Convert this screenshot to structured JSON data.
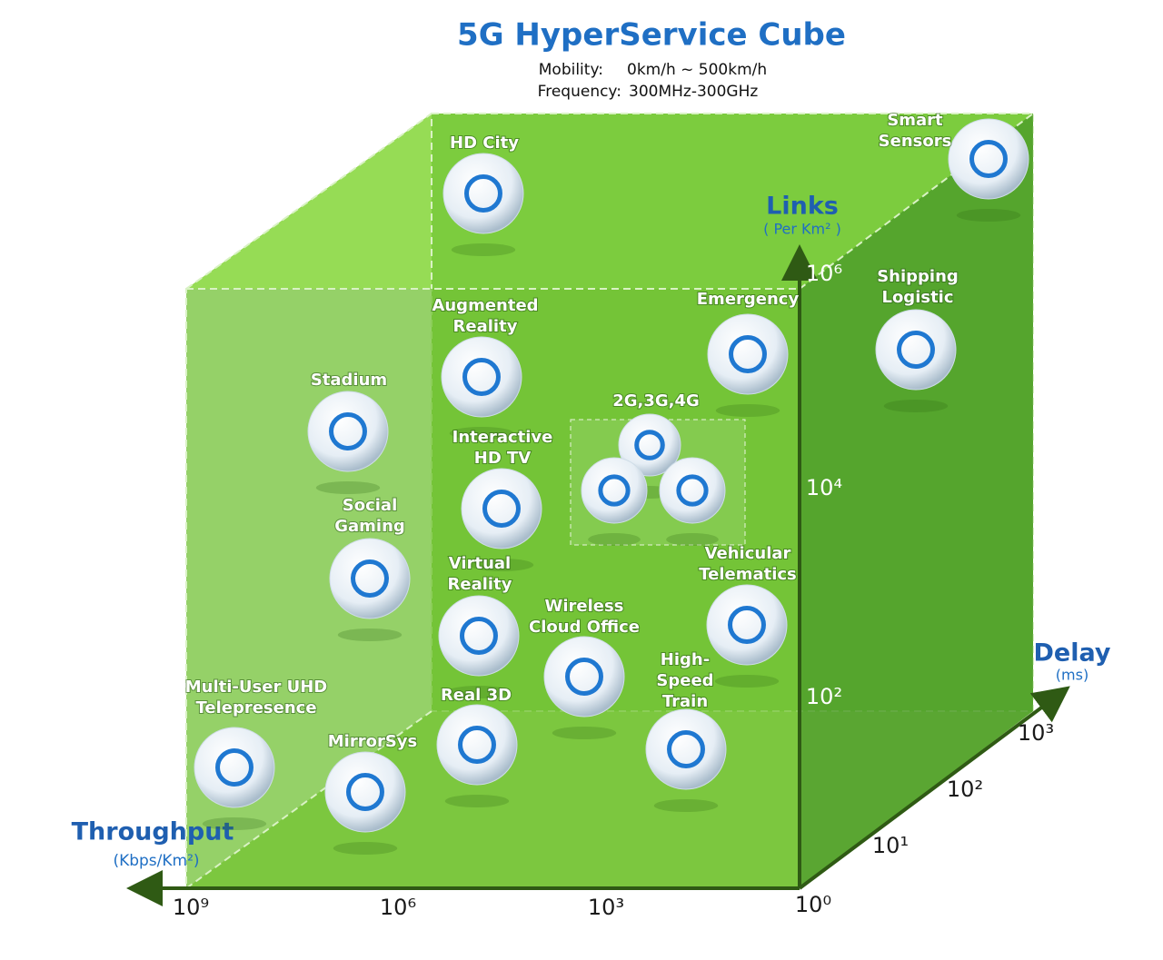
{
  "header": {
    "title": "5G HyperService Cube",
    "mobility_label": "Mobility:",
    "mobility_value": "0km/h ~ 500km/h",
    "frequency_label": "Frequency:",
    "frequency_value": "300MHz-300GHz"
  },
  "axes": {
    "links": {
      "label": "Links",
      "unit": "( Per Km² )",
      "ticks": [
        "10⁶",
        "10⁴",
        "10²"
      ]
    },
    "delay": {
      "label": "Delay",
      "unit": "(ms)",
      "ticks": [
        "10³",
        "10²",
        "10¹"
      ]
    },
    "throughput": {
      "label": "Throughput",
      "unit": "(Kbps/Km²)",
      "ticks": [
        "10⁹",
        "10⁶",
        "10³",
        "10⁰"
      ]
    }
  },
  "nodes": [
    {
      "label": [
        "HD City"
      ]
    },
    {
      "label": [
        "Smart",
        "Sensors"
      ]
    },
    {
      "label": [
        "Shipping",
        "Logistic"
      ]
    },
    {
      "label": [
        "Augmented",
        "Reality"
      ]
    },
    {
      "label": [
        "Emergency"
      ]
    },
    {
      "label": [
        "Stadium"
      ]
    },
    {
      "label": [
        "Interactive",
        "HD TV"
      ]
    },
    {
      "label": [
        "2G,3G,4G"
      ]
    },
    {
      "label": [
        "Social",
        "Gaming"
      ]
    },
    {
      "label": [
        "Virtual",
        "Reality"
      ]
    },
    {
      "label": [
        "Wireless",
        "Cloud Office"
      ]
    },
    {
      "label": [
        "Vehicular",
        "Telematics"
      ]
    },
    {
      "label": [
        "Multi-User UHD",
        "Telepresence"
      ]
    },
    {
      "label": [
        "Real 3D"
      ]
    },
    {
      "label": [
        "High-",
        "Speed",
        "Train"
      ]
    },
    {
      "label": [
        "MirrorSys"
      ]
    }
  ]
}
